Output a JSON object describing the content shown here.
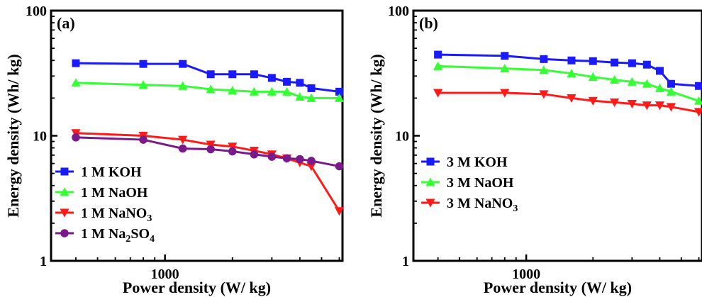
{
  "chart_data": [
    {
      "type": "line",
      "panel_label": "(a)",
      "xlabel": "Power density (W/ kg)",
      "ylabel": "Energy density (Wh/ kg)",
      "xscale": "log",
      "yscale": "log",
      "xlim": [
        310,
        6200
      ],
      "ylim": [
        1,
        100
      ],
      "x_ticks": [
        {
          "value": 1000,
          "label": "1000"
        }
      ],
      "y_ticks": [
        {
          "value": 1,
          "label": "1"
        },
        {
          "value": 10,
          "label": "10"
        },
        {
          "value": 100,
          "label": "100"
        }
      ],
      "grid": false,
      "legend_position": "lower-left",
      "series": [
        {
          "name": "1 M KOH",
          "name_main": "1 M KOH",
          "name_sub": "",
          "name_tail": "",
          "color": "#1a1aff",
          "marker": "square",
          "x": [
            400,
            800,
            1200,
            1600,
            2000,
            2500,
            3000,
            3500,
            4000,
            4500,
            6000
          ],
          "y": [
            38,
            37.5,
            37.5,
            31,
            31,
            31,
            29,
            27,
            26.5,
            24,
            22.5
          ]
        },
        {
          "name": "1 M NaOH",
          "name_main": "1 M NaOH",
          "name_sub": "",
          "name_tail": "",
          "color": "#33ff33",
          "marker": "triangle-up",
          "x": [
            400,
            800,
            1200,
            1600,
            2000,
            2500,
            3000,
            3500,
            4000,
            4500,
            6000
          ],
          "y": [
            26.5,
            25.5,
            25,
            23.5,
            23,
            22.5,
            22.5,
            22.5,
            20.5,
            20,
            20
          ]
        },
        {
          "name": "1 M NaNO3",
          "name_main": "1 M NaNO",
          "name_sub": "3",
          "name_tail": "",
          "color": "#ff1a1a",
          "marker": "triangle-down",
          "x": [
            400,
            800,
            1200,
            1600,
            2000,
            2500,
            3000,
            3500,
            4000,
            4500,
            6000
          ],
          "y": [
            10.5,
            10,
            9.3,
            8.5,
            8.2,
            7.6,
            7.1,
            6.6,
            6.1,
            5.7,
            2.5
          ]
        },
        {
          "name": "1 M Na2SO4",
          "name_main": "1 M Na",
          "name_sub": "2",
          "name_tail": "SO",
          "name_sub2": "4",
          "color": "#7a1a8a",
          "marker": "circle",
          "x": [
            400,
            800,
            1200,
            1600,
            2000,
            2500,
            3000,
            3500,
            4000,
            4500,
            6000
          ],
          "y": [
            9.7,
            9.3,
            7.9,
            7.8,
            7.5,
            7.1,
            6.8,
            6.6,
            6.5,
            6.3,
            5.7
          ]
        }
      ]
    },
    {
      "type": "line",
      "panel_label": "(b)",
      "xlabel": "Power density (W/ kg)",
      "ylabel": "Energy density (Wh/ kg)",
      "xscale": "log",
      "yscale": "log",
      "xlim": [
        310,
        6200
      ],
      "ylim": [
        1,
        100
      ],
      "x_ticks": [
        {
          "value": 1000,
          "label": "1000"
        }
      ],
      "y_ticks": [
        {
          "value": 1,
          "label": "1"
        },
        {
          "value": 10,
          "label": "10"
        },
        {
          "value": 100,
          "label": "100"
        }
      ],
      "grid": false,
      "legend_position": "center-left",
      "series": [
        {
          "name": "3 M KOH",
          "name_main": "3 M KOH",
          "name_sub": "",
          "name_tail": "",
          "color": "#1a1aff",
          "marker": "square",
          "x": [
            400,
            800,
            1200,
            1600,
            2000,
            2500,
            3000,
            3500,
            4000,
            4500,
            6000
          ],
          "y": [
            44.5,
            43.5,
            41,
            40,
            39.5,
            38.5,
            38,
            37,
            33,
            26,
            25
          ]
        },
        {
          "name": "3 M NaOH",
          "name_main": "3 M NaOH",
          "name_sub": "",
          "name_tail": "",
          "color": "#33ff33",
          "marker": "triangle-up",
          "x": [
            400,
            800,
            1200,
            1600,
            2000,
            2500,
            3000,
            3500,
            4000,
            4500,
            6000
          ],
          "y": [
            36,
            34.5,
            33.5,
            31.5,
            29.5,
            28,
            27,
            26,
            24,
            22.5,
            19
          ]
        },
        {
          "name": "3 M NaNO3",
          "name_main": "3 M NaNO",
          "name_sub": "3",
          "name_tail": "",
          "color": "#ff1a1a",
          "marker": "triangle-down",
          "x": [
            400,
            800,
            1200,
            1600,
            2000,
            2500,
            3000,
            3500,
            4000,
            4500,
            6000
          ],
          "y": [
            22,
            22,
            21.5,
            20,
            19,
            18.5,
            18,
            17.5,
            17.5,
            17,
            15.5
          ]
        }
      ]
    }
  ]
}
